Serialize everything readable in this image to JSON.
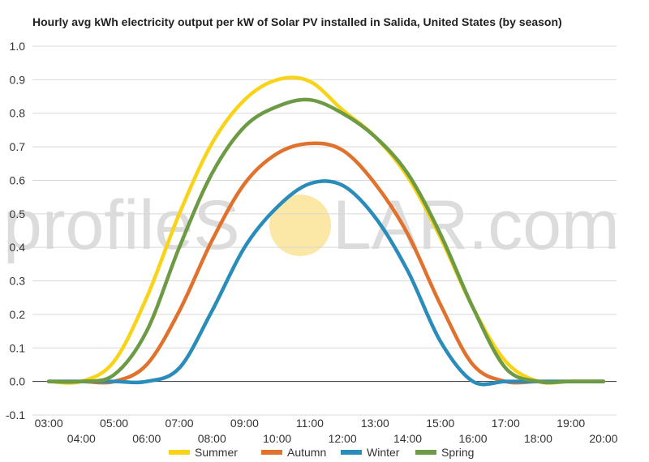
{
  "colors": {
    "grid": "#d8d8d8",
    "zero_line": "#333333",
    "watermark_text": "#dcdcdc",
    "watermark_sun": "#fbe7a6"
  },
  "watermark": {
    "text_before": "profileS",
    "text_after": "LAR.com"
  },
  "chart_data": {
    "type": "line",
    "title": "Hourly avg kWh electricity output per kW of Solar PV installed in Salida, United States (by season)",
    "xlabel": "",
    "ylabel": "",
    "ylim": [
      -0.1,
      1.0
    ],
    "yticks": [
      "-0.1",
      "0.0",
      "0.1",
      "0.2",
      "0.3",
      "0.4",
      "0.5",
      "0.6",
      "0.7",
      "0.8",
      "0.9",
      "1.0"
    ],
    "xlim": [
      3,
      20
    ],
    "xticks_top": [
      "03:00",
      "05:00",
      "07:00",
      "09:00",
      "11:00",
      "13:00",
      "15:00",
      "17:00",
      "19:00"
    ],
    "xticks_bottom": [
      "04:00",
      "06:00",
      "08:00",
      "10:00",
      "12:00",
      "14:00",
      "16:00",
      "18:00",
      "20:00"
    ],
    "grid": true,
    "legend_position": "bottom",
    "x": [
      3,
      4,
      5,
      6,
      7,
      8,
      9,
      10,
      11,
      12,
      13,
      14,
      15,
      16,
      17,
      18,
      19,
      20
    ],
    "series": [
      {
        "name": "Summer",
        "color": "#f9d318",
        "values": [
          0.0,
          0.0,
          0.06,
          0.25,
          0.5,
          0.71,
          0.84,
          0.9,
          0.895,
          0.81,
          0.73,
          0.61,
          0.43,
          0.22,
          0.06,
          0.0,
          0.0,
          0.0
        ]
      },
      {
        "name": "Autumn",
        "color": "#e0722d",
        "values": [
          0.0,
          0.0,
          0.0,
          0.05,
          0.21,
          0.42,
          0.59,
          0.68,
          0.71,
          0.69,
          0.59,
          0.44,
          0.23,
          0.05,
          0.0,
          0.0,
          0.0,
          0.0
        ]
      },
      {
        "name": "Winter",
        "color": "#2a8cbb",
        "values": [
          0.0,
          0.0,
          0.0,
          0.0,
          0.04,
          0.21,
          0.4,
          0.52,
          0.59,
          0.585,
          0.49,
          0.33,
          0.12,
          0.0,
          0.0,
          0.0,
          0.0,
          0.0
        ]
      },
      {
        "name": "Spring",
        "color": "#6d9a45",
        "values": [
          0.0,
          0.0,
          0.02,
          0.15,
          0.4,
          0.62,
          0.76,
          0.82,
          0.84,
          0.8,
          0.73,
          0.62,
          0.44,
          0.22,
          0.04,
          0.0,
          0.0,
          0.0
        ]
      }
    ]
  }
}
